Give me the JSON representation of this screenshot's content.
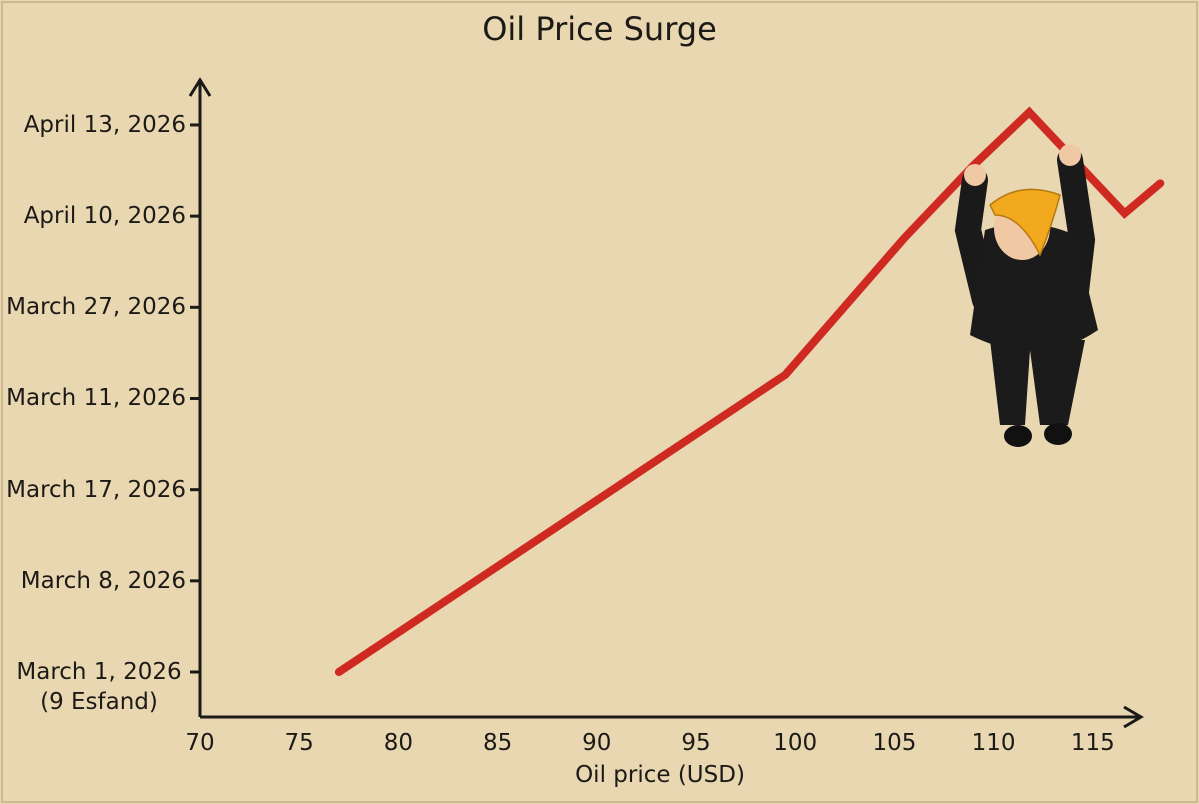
{
  "chart_data": {
    "type": "line",
    "title": "Oil Price Surge",
    "x_label": "Oil price (USD)",
    "xlim": [
      70,
      117
    ],
    "xticks": [
      70,
      75,
      80,
      85,
      90,
      95,
      100,
      105,
      110,
      115
    ],
    "ylim": [
      -0.5,
      6.4
    ],
    "yticks": [
      {
        "value": 0,
        "label": "March 1, 2026\n(9 Esfand)"
      },
      {
        "value": 1,
        "label": "March 8, 2026"
      },
      {
        "value": 2,
        "label": "March 17, 2026"
      },
      {
        "value": 3,
        "label": "March 11, 2026"
      },
      {
        "value": 4,
        "label": "March 27, 2026"
      },
      {
        "value": 5,
        "label": "April 10, 2026"
      },
      {
        "value": 6,
        "label": "April 13, 2026"
      }
    ],
    "series": [
      {
        "color": "#cf2a22",
        "x": [
          77,
          99.5,
          105.5,
          109,
          111.8,
          116.6,
          118.4
        ],
        "values": [
          0,
          3.26,
          4.76,
          5.56,
          6.14,
          5.03,
          5.36
        ]
      }
    ]
  }
}
